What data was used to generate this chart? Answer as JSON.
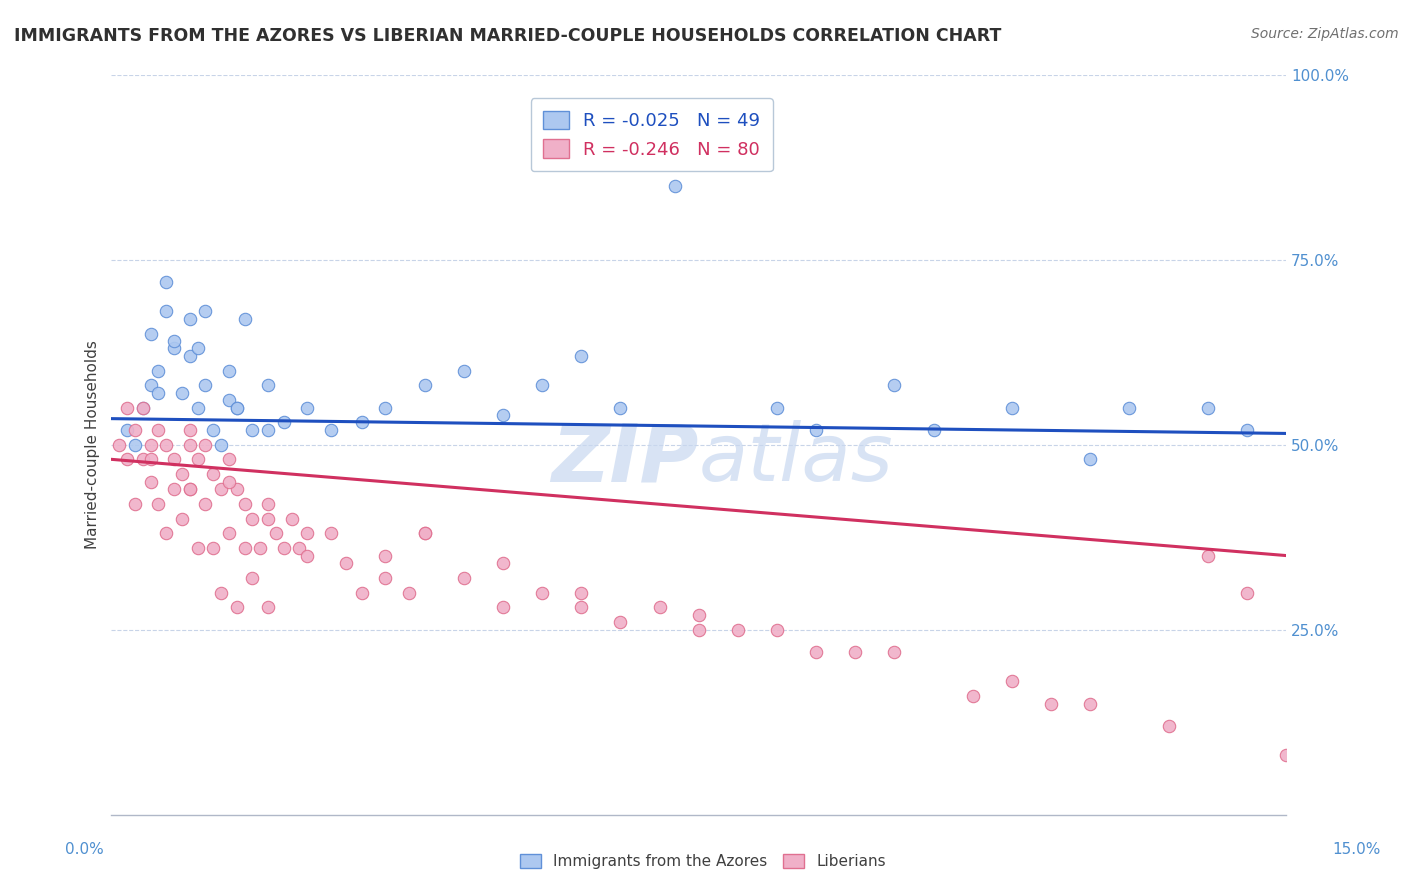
{
  "title": "IMMIGRANTS FROM THE AZORES VS LIBERIAN MARRIED-COUPLE HOUSEHOLDS CORRELATION CHART",
  "source": "Source: ZipAtlas.com",
  "ylabel": "Married-couple Households",
  "xmin": 0.0,
  "xmax": 15.0,
  "ymin": 0.0,
  "ymax": 100.0,
  "yticks": [
    0,
    25,
    50,
    75,
    100
  ],
  "ytick_labels": [
    "",
    "25.0%",
    "50.0%",
    "75.0%",
    "100.0%"
  ],
  "series1_label": "Immigrants from the Azores",
  "series1_R": -0.025,
  "series1_N": 49,
  "series1_color": "#adc8f0",
  "series1_edge_color": "#6090d8",
  "series1_line_color": "#1e4fbf",
  "series2_label": "Liberians",
  "series2_R": -0.246,
  "series2_N": 80,
  "series2_color": "#f0b0c8",
  "series2_edge_color": "#e07090",
  "series2_line_color": "#d03060",
  "background_color": "#ffffff",
  "watermark_color": "#c8d8f0",
  "grid_color": "#c8d4e8",
  "series1_x": [
    0.2,
    0.3,
    0.4,
    0.5,
    0.5,
    0.6,
    0.7,
    0.7,
    0.8,
    0.9,
    1.0,
    1.0,
    1.1,
    1.1,
    1.2,
    1.3,
    1.4,
    1.5,
    1.5,
    1.6,
    1.7,
    1.8,
    2.0,
    2.2,
    2.5,
    2.8,
    3.2,
    3.5,
    4.0,
    4.5,
    5.0,
    5.5,
    6.0,
    6.5,
    7.2,
    8.5,
    9.0,
    10.0,
    10.5,
    11.5,
    12.5,
    13.0,
    14.0,
    14.5,
    0.6,
    0.8,
    1.2,
    1.6,
    2.0
  ],
  "series1_y": [
    52,
    50,
    55,
    58,
    65,
    60,
    68,
    72,
    63,
    57,
    62,
    67,
    55,
    63,
    58,
    52,
    50,
    60,
    56,
    55,
    67,
    52,
    58,
    53,
    55,
    52,
    53,
    55,
    58,
    60,
    54,
    58,
    62,
    55,
    85,
    55,
    52,
    58,
    52,
    55,
    48,
    55,
    55,
    52,
    57,
    64,
    68,
    55,
    52
  ],
  "series2_x": [
    0.1,
    0.2,
    0.2,
    0.3,
    0.3,
    0.4,
    0.4,
    0.5,
    0.5,
    0.6,
    0.6,
    0.7,
    0.7,
    0.8,
    0.8,
    0.9,
    0.9,
    1.0,
    1.0,
    1.0,
    1.1,
    1.1,
    1.2,
    1.2,
    1.3,
    1.3,
    1.4,
    1.4,
    1.5,
    1.5,
    1.6,
    1.6,
    1.7,
    1.7,
    1.8,
    1.8,
    1.9,
    2.0,
    2.0,
    2.1,
    2.2,
    2.3,
    2.4,
    2.5,
    2.8,
    3.0,
    3.2,
    3.5,
    3.8,
    4.0,
    4.5,
    5.0,
    5.5,
    6.0,
    6.5,
    7.0,
    7.5,
    8.0,
    9.0,
    10.0,
    11.0,
    12.0,
    1.5,
    2.5,
    3.5,
    0.5,
    1.0,
    2.0,
    4.0,
    5.0,
    6.0,
    7.5,
    8.5,
    9.5,
    11.5,
    12.5,
    13.5,
    14.0,
    14.5,
    15.0
  ],
  "series2_y": [
    50,
    55,
    48,
    52,
    42,
    48,
    55,
    50,
    45,
    52,
    42,
    50,
    38,
    48,
    44,
    46,
    40,
    50,
    44,
    52,
    48,
    36,
    50,
    42,
    46,
    36,
    44,
    30,
    48,
    38,
    44,
    28,
    42,
    36,
    40,
    32,
    36,
    42,
    28,
    38,
    36,
    40,
    36,
    38,
    38,
    34,
    30,
    35,
    30,
    38,
    32,
    28,
    30,
    28,
    26,
    28,
    25,
    25,
    22,
    22,
    16,
    15,
    45,
    35,
    32,
    48,
    44,
    40,
    38,
    34,
    30,
    27,
    25,
    22,
    18,
    15,
    12,
    35,
    30,
    8
  ],
  "series1_trend_y0": 53.5,
  "series1_trend_y1": 51.5,
  "series2_trend_y0": 48.0,
  "series2_trend_y1": 35.0
}
